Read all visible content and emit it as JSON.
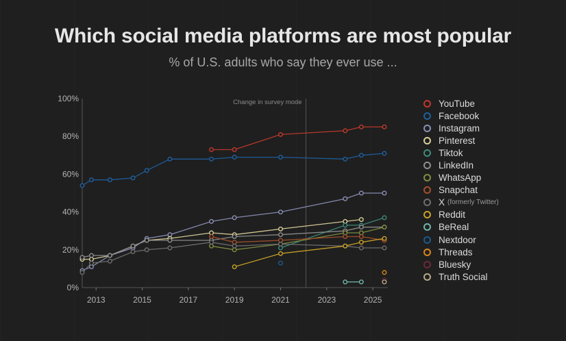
{
  "title": "Which social media platforms are most popular",
  "subtitle": "% of U.S. adults who say they ever use ...",
  "chart_data": {
    "type": "line",
    "title": "Which social media platforms are most popular",
    "subtitle": "% of U.S. adults who say they ever use ...",
    "xlabel": "",
    "ylabel": "",
    "xlim": [
      2012.4,
      2025.65
    ],
    "ylim": [
      0,
      100
    ],
    "x_ticks": [
      2013,
      2015,
      2017,
      2019,
      2021,
      2023,
      2025
    ],
    "y_ticks": [
      0,
      20,
      40,
      60,
      80,
      100
    ],
    "y_tick_labels": [
      "0%",
      "20%",
      "40%",
      "60%",
      "80%",
      "100%"
    ],
    "annotation": {
      "text": "Change in survey mode",
      "x": 2022.1
    },
    "legend_position": "right",
    "series": [
      {
        "name": "YouTube",
        "color": "#c0392b",
        "points": [
          [
            2018,
            73
          ],
          [
            2019,
            73
          ],
          [
            2021,
            81
          ],
          [
            2023.8,
            83
          ],
          [
            2024.5,
            85
          ],
          [
            2025.5,
            85
          ]
        ]
      },
      {
        "name": "Facebook",
        "color": "#1f5f9e",
        "points": [
          [
            2012.4,
            54
          ],
          [
            2012.8,
            57
          ],
          [
            2013.6,
            57
          ],
          [
            2014.6,
            58
          ],
          [
            2015.2,
            62
          ],
          [
            2016.2,
            68
          ],
          [
            2018,
            68
          ],
          [
            2019,
            69
          ],
          [
            2021,
            69
          ],
          [
            2023.8,
            68
          ],
          [
            2024.5,
            70
          ],
          [
            2025.5,
            71
          ]
        ]
      },
      {
        "name": "Instagram",
        "color": "#8a8fb5",
        "points": [
          [
            2012.4,
            9
          ],
          [
            2012.8,
            11
          ],
          [
            2013.6,
            17
          ],
          [
            2014.6,
            21
          ],
          [
            2015.2,
            26
          ],
          [
            2016.2,
            28
          ],
          [
            2018,
            35
          ],
          [
            2019,
            37
          ],
          [
            2021,
            40
          ],
          [
            2023.8,
            47
          ],
          [
            2024.5,
            50
          ],
          [
            2025.5,
            50
          ]
        ]
      },
      {
        "name": "Pinterest",
        "color": "#d8cf9a",
        "points": [
          [
            2012.4,
            15
          ],
          [
            2012.8,
            15
          ],
          [
            2013.6,
            17
          ],
          [
            2014.6,
            22
          ],
          [
            2015.2,
            25
          ],
          [
            2016.2,
            26
          ],
          [
            2018,
            29
          ],
          [
            2019,
            28
          ],
          [
            2021,
            31
          ],
          [
            2023.8,
            35
          ],
          [
            2024.5,
            36
          ]
        ]
      },
      {
        "name": "Tiktok",
        "color": "#3d8c7a",
        "points": [
          [
            2021,
            21
          ],
          [
            2023.8,
            33
          ],
          [
            2024.5,
            33
          ],
          [
            2025.5,
            37
          ]
        ]
      },
      {
        "name": "LinkedIn",
        "color": "#8e8e8e",
        "points": [
          [
            2012.4,
            16
          ],
          [
            2012.8,
            17
          ],
          [
            2013.6,
            17
          ],
          [
            2014.6,
            22
          ],
          [
            2015.2,
            25
          ],
          [
            2016.2,
            25
          ],
          [
            2018,
            25
          ],
          [
            2019,
            27
          ],
          [
            2021,
            28
          ],
          [
            2023.8,
            30
          ],
          [
            2024.5,
            32
          ],
          [
            2025.5,
            32
          ]
        ]
      },
      {
        "name": "WhatsApp",
        "color": "#7f8f3f",
        "points": [
          [
            2018,
            22
          ],
          [
            2019,
            20
          ],
          [
            2021,
            23
          ],
          [
            2023.8,
            29
          ],
          [
            2024.5,
            29
          ],
          [
            2025.5,
            32
          ]
        ]
      },
      {
        "name": "Snapchat",
        "color": "#a3502c",
        "points": [
          [
            2018,
            27
          ],
          [
            2019,
            24
          ],
          [
            2021,
            25
          ],
          [
            2023.8,
            27
          ],
          [
            2024.5,
            27
          ],
          [
            2025.5,
            25
          ]
        ]
      },
      {
        "name": "X",
        "note": "(formerly Twitter)",
        "color": "#6e6e6e",
        "points": [
          [
            2012.4,
            8
          ],
          [
            2012.8,
            13
          ],
          [
            2013.6,
            14
          ],
          [
            2014.6,
            19
          ],
          [
            2015.2,
            20
          ],
          [
            2016.2,
            21
          ],
          [
            2018,
            24
          ],
          [
            2019,
            22
          ],
          [
            2021,
            23
          ],
          [
            2023.8,
            22
          ],
          [
            2024.5,
            21
          ],
          [
            2025.5,
            21
          ]
        ]
      },
      {
        "name": "Reddit",
        "color": "#c9a227",
        "points": [
          [
            2019,
            11
          ],
          [
            2021,
            18
          ],
          [
            2023.8,
            22
          ],
          [
            2024.5,
            24
          ],
          [
            2025.5,
            26
          ]
        ]
      },
      {
        "name": "BeReal",
        "color": "#6fb5a8",
        "points": [
          [
            2023.8,
            3
          ],
          [
            2024.5,
            3
          ]
        ]
      },
      {
        "name": "Nextdoor",
        "color": "#1a5a8a",
        "points": [
          [
            2021,
            13
          ]
        ]
      },
      {
        "name": "Threads",
        "color": "#d9861a",
        "points": [
          [
            2025.5,
            8
          ]
        ]
      },
      {
        "name": "Bluesky",
        "color": "#6a2a3a",
        "points": [
          [
            2025.5,
            4
          ]
        ]
      },
      {
        "name": "Truth Social",
        "color": "#b8a888",
        "points": [
          [
            2025.5,
            3
          ]
        ]
      }
    ]
  }
}
